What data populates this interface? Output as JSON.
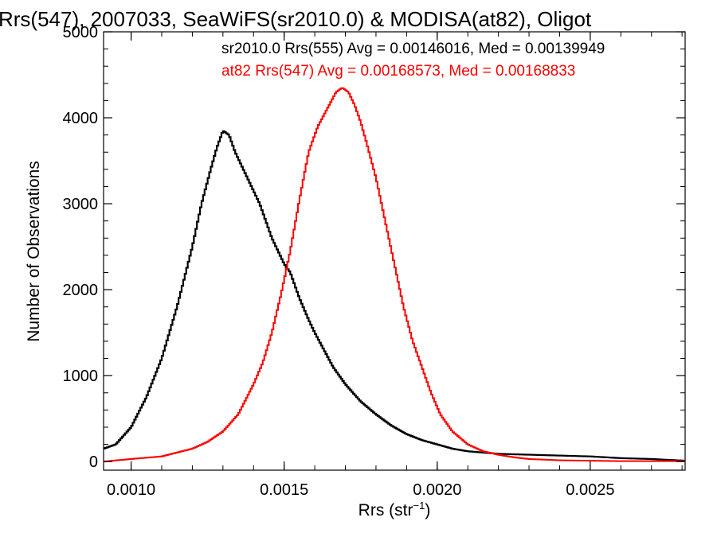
{
  "chart_data": {
    "type": "line",
    "title": "Rrs(547), 2007033, SeaWiFS(sr2010.0) & MODISA(at82), Oligot",
    "xlabel_main": "Rrs (str",
    "xlabel_sup": "−1",
    "xlabel_close": ")",
    "ylabel": "Number of Observations",
    "xlim": [
      0.00091,
      0.00281
    ],
    "ylim": [
      -100,
      5000
    ],
    "x_ticks": [
      {
        "value": 0.001,
        "label": "0.0010"
      },
      {
        "value": 0.0015,
        "label": "0.0015"
      },
      {
        "value": 0.002,
        "label": "0.0020"
      },
      {
        "value": 0.0025,
        "label": "0.0025"
      }
    ],
    "y_ticks": [
      {
        "value": 0,
        "label": "0"
      },
      {
        "value": 1000,
        "label": "1000"
      },
      {
        "value": 2000,
        "label": "2000"
      },
      {
        "value": 3000,
        "label": "3000"
      },
      {
        "value": 4000,
        "label": "4000"
      },
      {
        "value": 5000,
        "label": "5000"
      }
    ],
    "legend": [
      {
        "text": "sr2010.0 Rrs(555) Avg = 0.00146016, Med = 0.00139949",
        "color": "#000000"
      },
      {
        "text": "at82 Rrs(547) Avg = 0.00168573, Med = 0.00168833",
        "color": "#ff0000"
      }
    ],
    "series": [
      {
        "color": "#000000",
        "step": true,
        "x": [
          0.00091,
          0.00095,
          0.001,
          0.00105,
          0.0011,
          0.00115,
          0.0012,
          0.00123,
          0.00126,
          0.00128,
          0.0013,
          0.00132,
          0.00134,
          0.00136,
          0.00138,
          0.0014,
          0.00142,
          0.00144,
          0.00146,
          0.00148,
          0.0015,
          0.00152,
          0.00155,
          0.00158,
          0.0016,
          0.00163,
          0.00166,
          0.0017,
          0.00175,
          0.0018,
          0.00185,
          0.0019,
          0.00195,
          0.002,
          0.00205,
          0.0021,
          0.0022,
          0.0023,
          0.0024,
          0.0025,
          0.0026,
          0.0027,
          0.00281
        ],
        "y": [
          150,
          200,
          400,
          750,
          1200,
          1800,
          2500,
          3000,
          3400,
          3650,
          3850,
          3800,
          3600,
          3450,
          3300,
          3150,
          3000,
          2800,
          2600,
          2450,
          2300,
          2200,
          1900,
          1650,
          1500,
          1300,
          1100,
          900,
          700,
          550,
          420,
          320,
          250,
          200,
          150,
          120,
          90,
          80,
          70,
          60,
          40,
          30,
          10
        ]
      },
      {
        "color": "#ff0000",
        "step": true,
        "x": [
          0.00091,
          0.001,
          0.0011,
          0.0012,
          0.00125,
          0.0013,
          0.00135,
          0.0014,
          0.00143,
          0.00146,
          0.00149,
          0.00152,
          0.00155,
          0.00158,
          0.00161,
          0.00164,
          0.00167,
          0.00169,
          0.00171,
          0.00173,
          0.00175,
          0.00177,
          0.0018,
          0.00183,
          0.00186,
          0.00189,
          0.00192,
          0.00195,
          0.00198,
          0.00201,
          0.00205,
          0.0021,
          0.00215,
          0.0022,
          0.00225,
          0.0023,
          0.0024,
          0.0025,
          0.0026,
          0.0027,
          0.00281
        ],
        "y": [
          0,
          30,
          60,
          150,
          230,
          350,
          550,
          900,
          1150,
          1500,
          1950,
          2450,
          3050,
          3600,
          3900,
          4100,
          4300,
          4350,
          4300,
          4150,
          3950,
          3700,
          3300,
          2800,
          2300,
          1800,
          1400,
          1100,
          800,
          550,
          350,
          200,
          120,
          80,
          50,
          30,
          15,
          10,
          5,
          5,
          5
        ]
      }
    ]
  }
}
